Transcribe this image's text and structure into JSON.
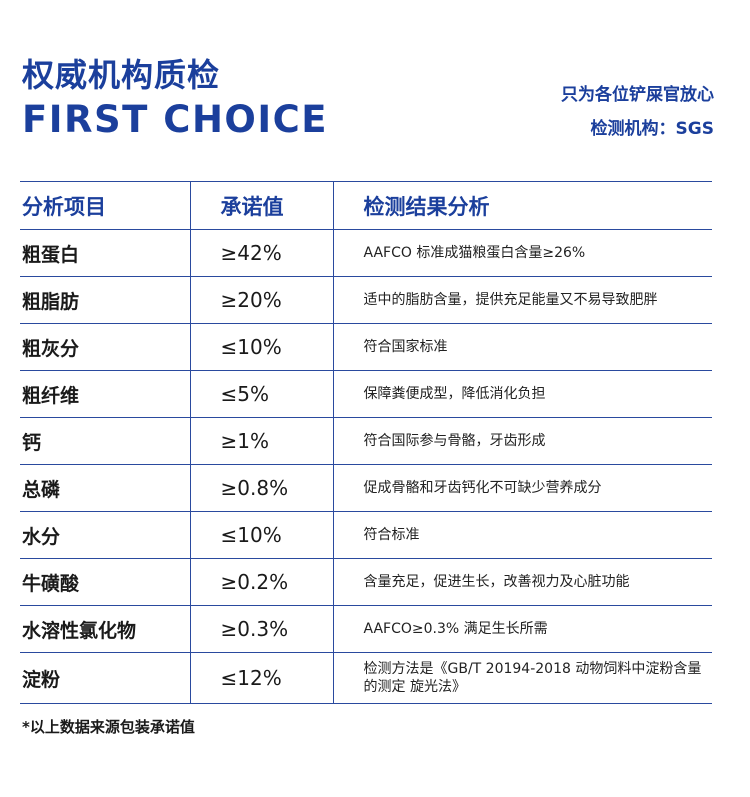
{
  "header": {
    "title_cn": "权威机构质检",
    "title_en": "FIRST CHOICE",
    "tagline": "只为各位铲屎官放心",
    "agency": "检测机构：SGS"
  },
  "table": {
    "headers": {
      "item": "分析项目",
      "value": "承诺值",
      "result": "检测结果分析"
    },
    "rows": [
      {
        "item": "粗蛋白",
        "value": "≥42%",
        "result": "AAFCO 标准成猫粮蛋白含量≥26%"
      },
      {
        "item": "粗脂肪",
        "value": "≥20%",
        "result": "适中的脂肪含量，提供充足能量又不易导致肥胖"
      },
      {
        "item": "粗灰分",
        "value": "≤10%",
        "result": "符合国家标准"
      },
      {
        "item": "粗纤维",
        "value": "≤5%",
        "result": "保障粪便成型，降低消化负担"
      },
      {
        "item": "钙",
        "value": "≥1%",
        "result": "符合国际参与骨骼，牙齿形成"
      },
      {
        "item": "总磷",
        "value": "≥0.8%",
        "result": "促成骨骼和牙齿钙化不可缺少营养成分"
      },
      {
        "item": "水分",
        "value": "≤10%",
        "result": "符合标准"
      },
      {
        "item": "牛磺酸",
        "value": "≥0.2%",
        "result": "含量充足，促进生长，改善视力及心脏功能"
      },
      {
        "item": "水溶性氯化物",
        "value": "≥0.3%",
        "result": "AAFCO≥0.3% 满足生长所需"
      },
      {
        "item": "淀粉",
        "value": "≤12%",
        "result": "检测方法是《GB/T 20194-2018 动物饲料中淀粉含量的测定 旋光法》"
      }
    ]
  },
  "footnote": "*以上数据来源包装承诺值"
}
